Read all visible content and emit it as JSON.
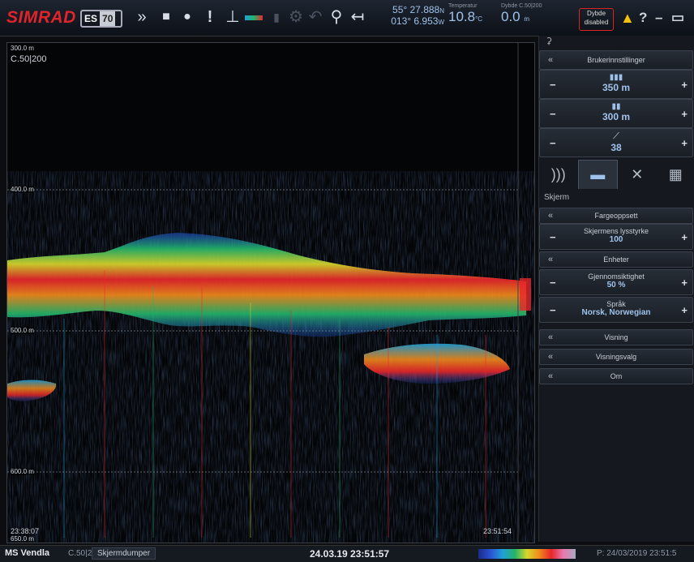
{
  "toolbar": {
    "brand": "SIMRAD",
    "model_a": "ES",
    "model_b": "70",
    "icons": [
      "chevron-double-down-icon",
      "camera-icon",
      "record-icon",
      "alert-exclamation-icon",
      "depth-range-icon",
      "color-scale-icon",
      "signal-bars-icon",
      "settings-icon",
      "undo-icon",
      "zoom-icon",
      "back-arrow-icon"
    ],
    "nav": {
      "lat": "55° 27.888",
      "lat_hemi": "N",
      "lon": "013° 6.953",
      "lon_hemi": "W"
    },
    "temperature": {
      "label": "Temperatur",
      "value": "10.8",
      "unit": "°C"
    },
    "depth": {
      "label": "Dybde C.50|200",
      "value": "0.0",
      "unit": "m"
    },
    "depth_alarm": {
      "label": "Dybde",
      "state": "disabled"
    },
    "window_controls": [
      "?",
      "–",
      "▭"
    ]
  },
  "echogram": {
    "channel": "C.50|200",
    "top_depth": "300.0 m",
    "depth_marks": [
      "400.0 m",
      "500.0 m",
      "600.0 m"
    ],
    "bottom_depth": "650.0 m",
    "start_time": "23:38:07",
    "end_time": "23:51:54"
  },
  "panel": {
    "user_settings": "Brukerinnstillinger",
    "range_value": "350 m",
    "start_value": "300 m",
    "gain_value": "38",
    "tabs": [
      "signal-icon",
      "display-icon",
      "tools-icon",
      "layout-icon"
    ],
    "section": "Skjerm",
    "items": [
      {
        "label": "Fargeoppsett",
        "type": "menu"
      },
      {
        "label": "Skjermens lysstyrke",
        "value": "100",
        "type": "stepper"
      },
      {
        "label": "Enheter",
        "type": "menu"
      },
      {
        "label": "Gjennomsiktighet",
        "value": "50 %",
        "type": "stepper"
      },
      {
        "label": "Språk",
        "value": "Norsk, Norwegian",
        "type": "stepper"
      },
      {
        "label": "Visning",
        "type": "menu"
      },
      {
        "label": "Visningsvalg",
        "type": "menu"
      },
      {
        "label": "Om",
        "type": "menu"
      }
    ]
  },
  "status": {
    "vessel": "MS Vendla",
    "channel": "C.50|200",
    "screenshot_button": "Skjermdumper",
    "clock": "24.03.19 23:51:57",
    "playback": "P: 24/03/2019  23:51:5"
  },
  "colors": {
    "brand": "#e0242b",
    "accent": "#9fc2ea",
    "alert": "#f4c20d"
  }
}
